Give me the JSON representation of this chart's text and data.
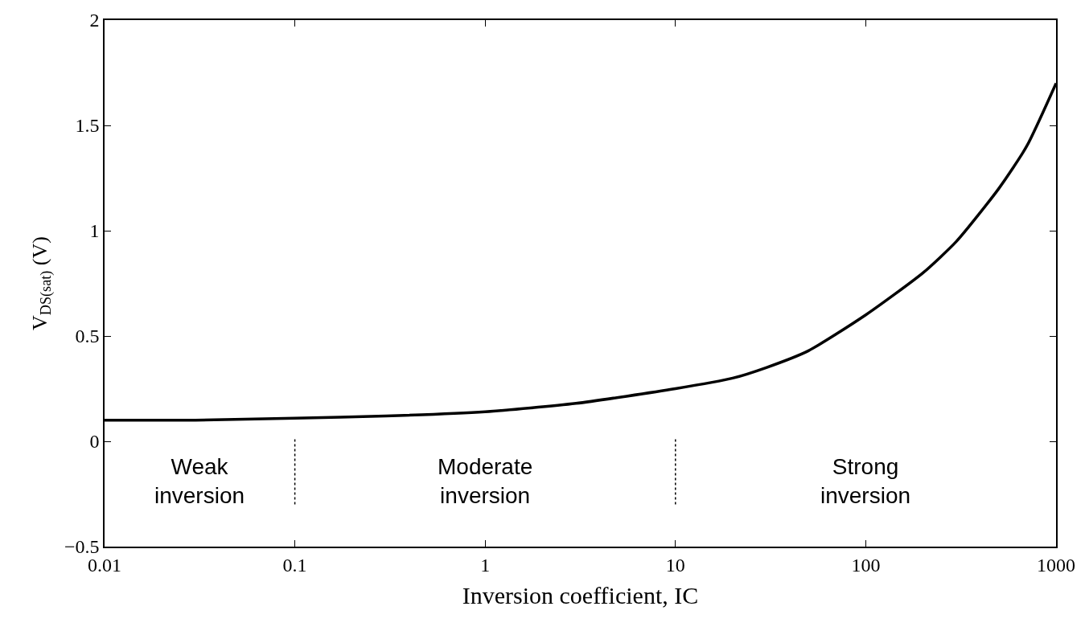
{
  "chart_data": {
    "type": "line",
    "xlabel": "Inversion coefficient, IC",
    "ylabel": "V$_{DS(sat)}$ (V)",
    "x": [
      0.01,
      0.03,
      0.1,
      0.3,
      1,
      3,
      10,
      20,
      30,
      50,
      100,
      200,
      300,
      500,
      700,
      1000
    ],
    "series": [
      {
        "color": "#000000",
        "values": [
          0.1,
          0.1,
          0.11,
          0.12,
          0.14,
          0.18,
          0.25,
          0.3,
          0.35,
          0.43,
          0.6,
          0.8,
          0.95,
          1.2,
          1.4,
          1.7
        ]
      }
    ],
    "log": "x",
    "xlim": [
      0.01,
      1000
    ],
    "ylim": [
      -0.5,
      2
    ],
    "xticks": [
      0.01,
      0.1,
      1,
      10,
      100,
      1000
    ],
    "yticks": [
      {
        "value": -0.5,
        "label": "−0.5"
      },
      0,
      0.5,
      1,
      1.5,
      2
    ],
    "marker": "none",
    "line_style": "solid",
    "ref_lines": [
      {
        "axis": "x",
        "value": 0.1,
        "line_style": "dotted",
        "color": "#000000"
      },
      {
        "axis": "x",
        "value": 10,
        "line_style": "dotted",
        "color": "#000000"
      }
    ],
    "annotations": [
      "Weak\ninversion",
      "Moderate\ninversion",
      "Strong\ninversion"
    ]
  }
}
